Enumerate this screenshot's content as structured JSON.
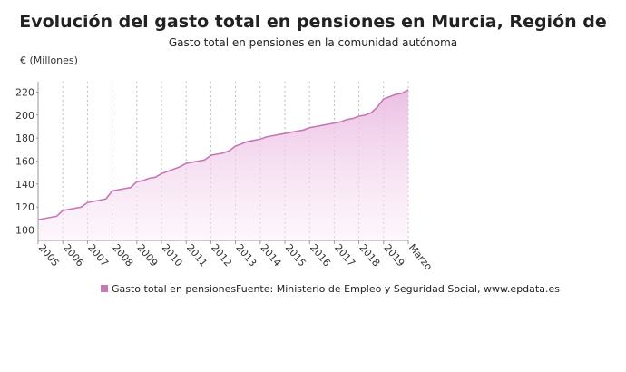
{
  "chart_data": {
    "type": "area",
    "title": "Evolución del gasto total en pensiones en Murcia, Región de",
    "subtitle": "Gasto total en pensiones en la comunidad autónoma",
    "y_label": "€ (Millones)",
    "source": "Fuente: Ministerio de Empleo y Seguridad Social, www.epdata.es",
    "categories": [
      "2005",
      null,
      null,
      null,
      "2006",
      null,
      null,
      null,
      "2007",
      null,
      null,
      null,
      "2008",
      null,
      null,
      null,
      "2009",
      null,
      null,
      null,
      "2010",
      null,
      null,
      null,
      "2011",
      null,
      null,
      null,
      "2012",
      null,
      null,
      null,
      "2013",
      null,
      null,
      null,
      "2014",
      null,
      null,
      null,
      "2015",
      null,
      null,
      null,
      "2016",
      null,
      null,
      null,
      "2017",
      null,
      null,
      null,
      "2018",
      null,
      null,
      null,
      "2019",
      null,
      null,
      null,
      "Marzo"
    ],
    "series": [
      {
        "name": "Gasto total en pensiones",
        "color": "#c678b6",
        "values": [
          109,
          110,
          111,
          112,
          117,
          118,
          119,
          120,
          124,
          125,
          126,
          127,
          134,
          135,
          136,
          137,
          142,
          143,
          145,
          146,
          149,
          151,
          153,
          155,
          158,
          159,
          160,
          161,
          165,
          166,
          167,
          169,
          173,
          175,
          177,
          178,
          179,
          181,
          182,
          183,
          184,
          185,
          186,
          187,
          189,
          190,
          191,
          192,
          193,
          194,
          196,
          197,
          199,
          200,
          202,
          207,
          214,
          216,
          218,
          219,
          222
        ]
      }
    ],
    "ylim": [
      91,
      229
    ],
    "yticks": [
      100,
      120,
      140,
      160,
      180,
      200,
      220
    ],
    "grid": true
  }
}
